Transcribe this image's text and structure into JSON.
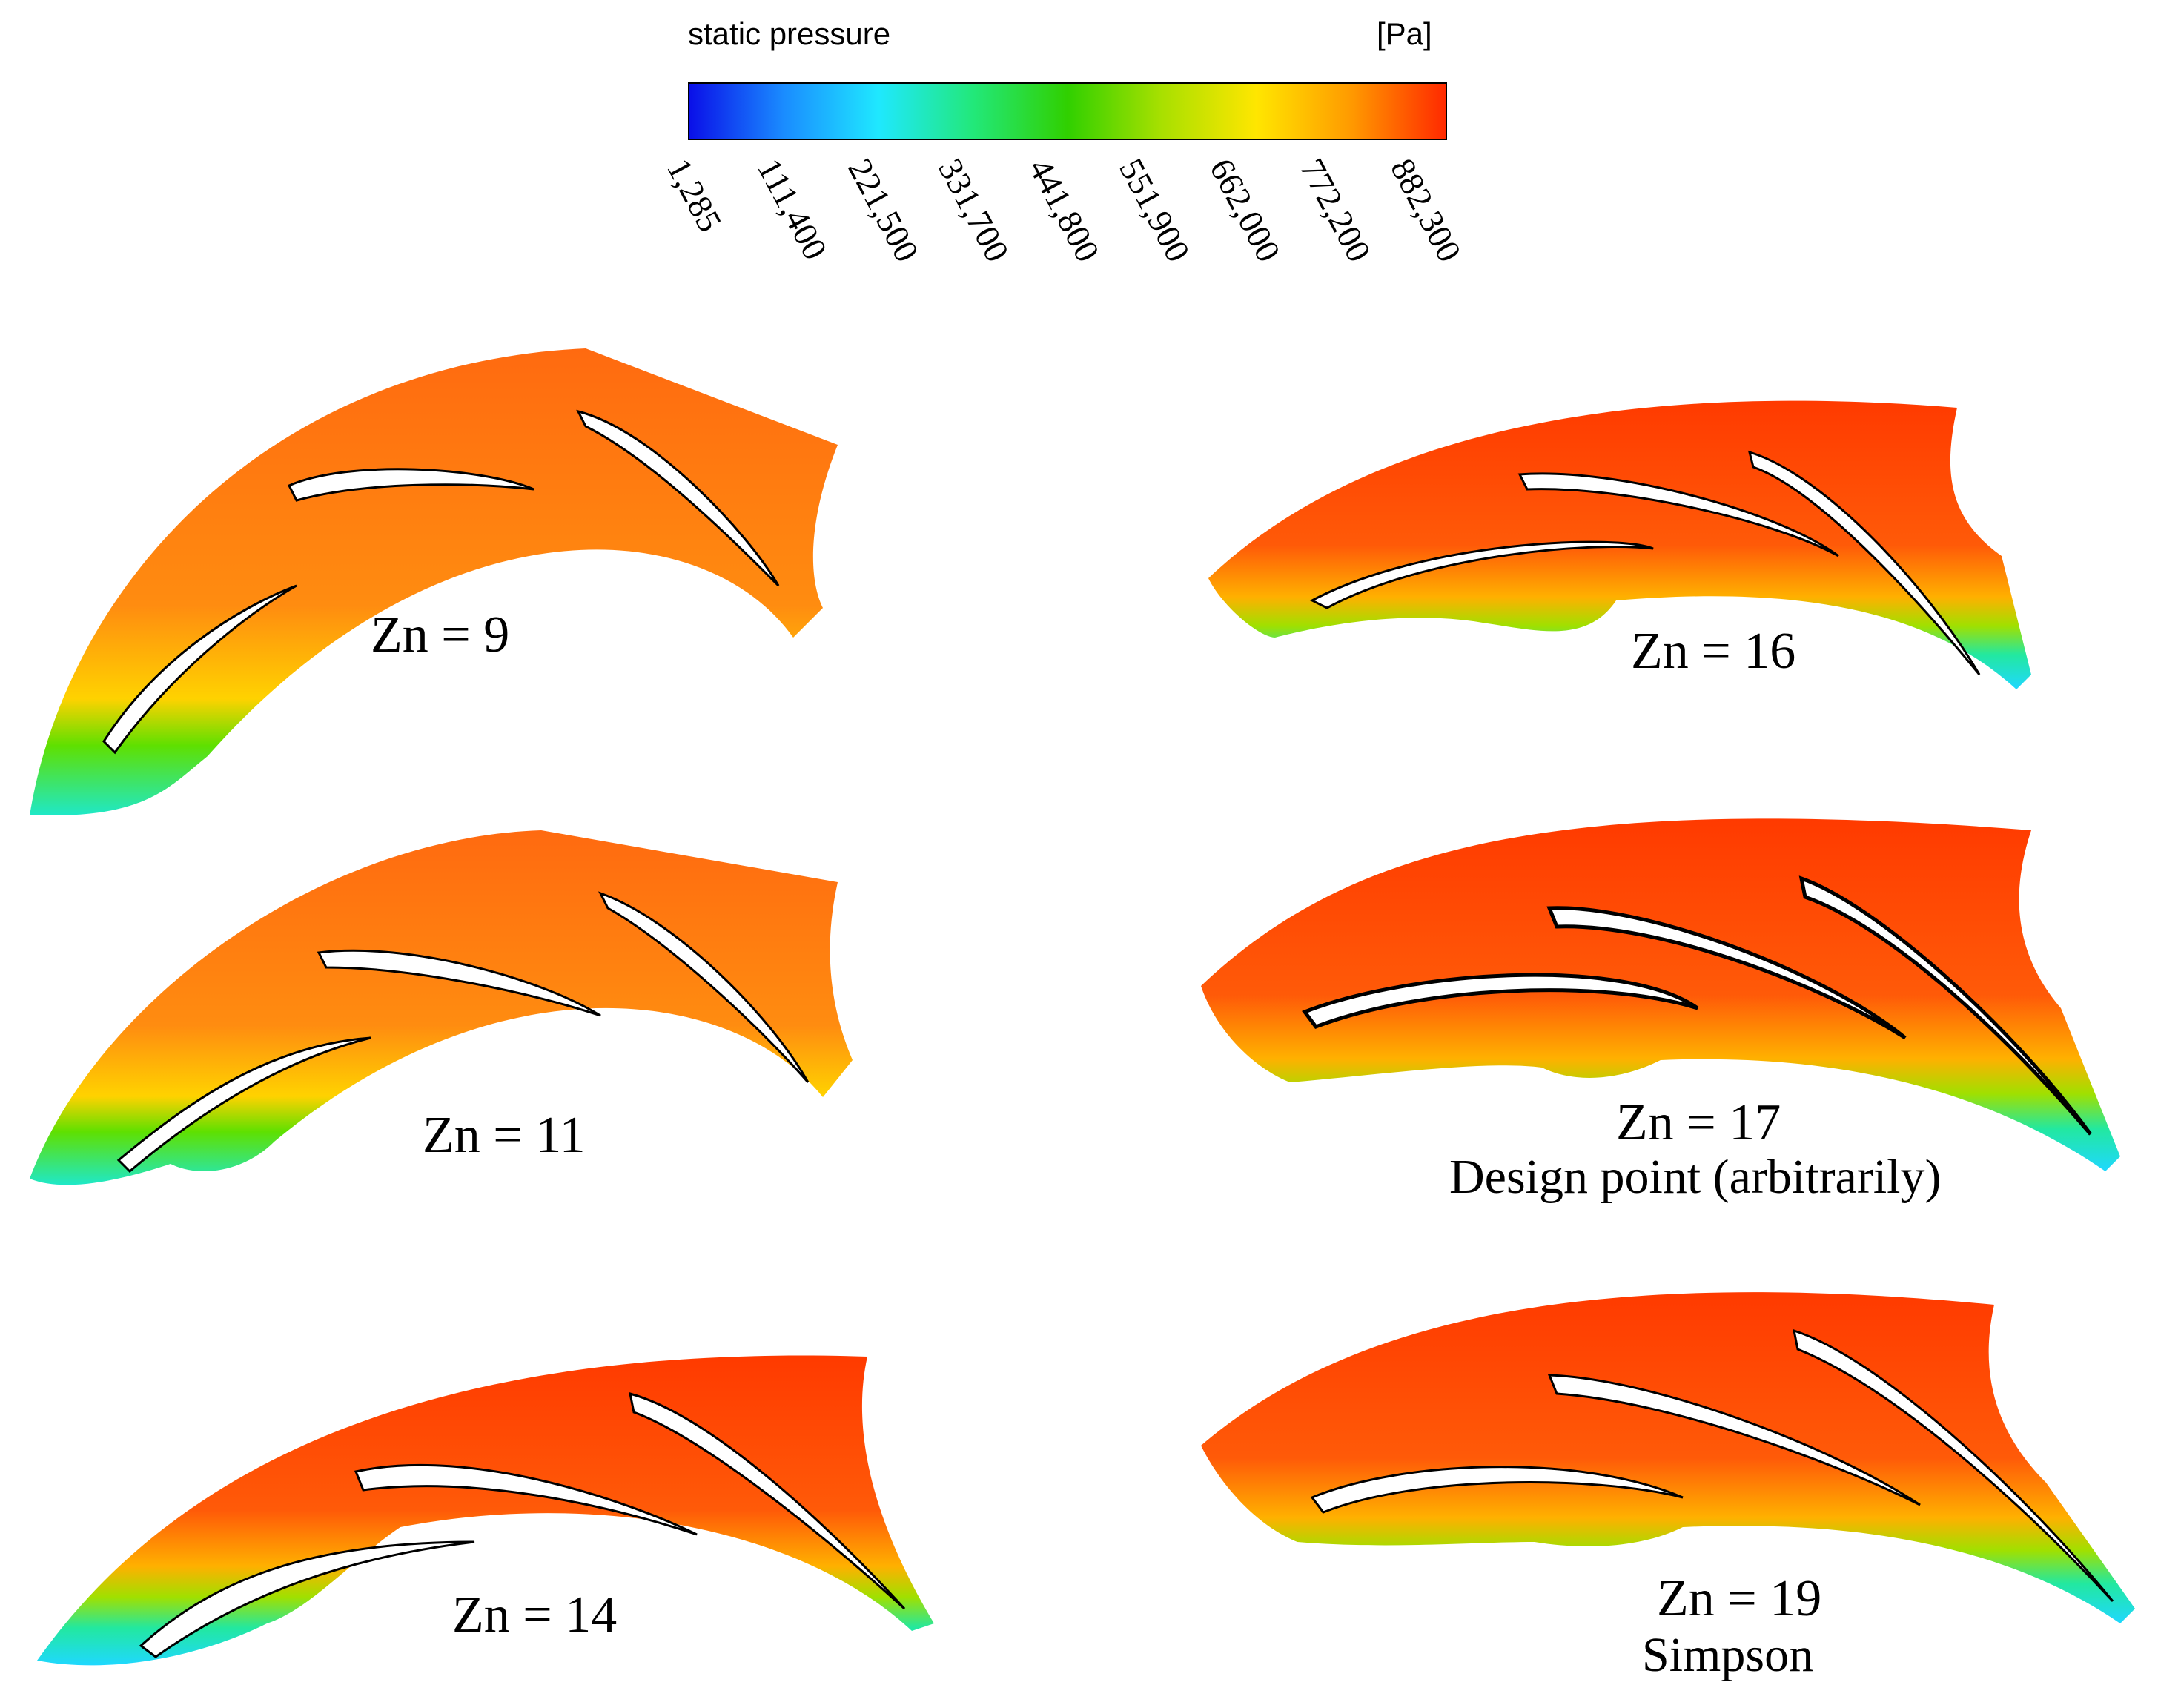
{
  "legend": {
    "title": "static pressure",
    "unit": "[Pa]",
    "ticks": [
      "1,285",
      "111,400",
      "221,500",
      "331,700",
      "441,800",
      "551,900",
      "662,000",
      "772,200",
      "882,300"
    ],
    "colors": [
      "#0a10e8",
      "#1a8cff",
      "#1fe8ff",
      "#22e87a",
      "#30d000",
      "#a9e000",
      "#ffe600",
      "#ff9a00",
      "#ff2a00"
    ]
  },
  "panels": [
    {
      "label": "Zn = 9",
      "sub": ""
    },
    {
      "label": "Zn = 16",
      "sub": ""
    },
    {
      "label": "Zn = 11",
      "sub": ""
    },
    {
      "label": "Zn = 17",
      "sub": "Design point (arbitrarily)"
    },
    {
      "label": "Zn = 14",
      "sub": ""
    },
    {
      "label": "Zn = 19",
      "sub": "Simpson"
    }
  ]
}
